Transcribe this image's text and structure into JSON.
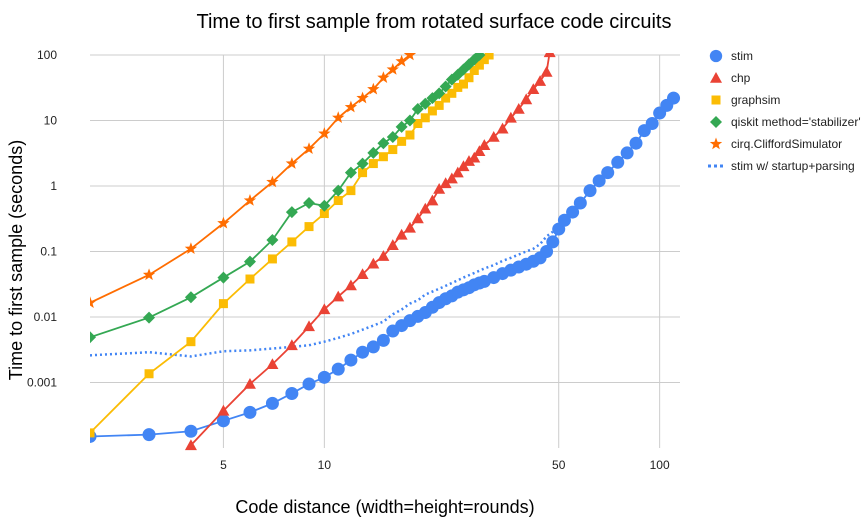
{
  "chart_data": {
    "type": "line",
    "title": "Time to first sample from rotated surface code circuits",
    "xlabel": "Code distance (width=height=rounds)",
    "ylabel": "Time to first sample (seconds)",
    "x_scale": "log",
    "y_scale": "log",
    "xlim": [
      2,
      115
    ],
    "ylim": [
      0.0001,
      100
    ],
    "x_ticks": [
      {
        "value": 5,
        "label": "5"
      },
      {
        "value": 10,
        "label": "10"
      },
      {
        "value": 50,
        "label": "50"
      },
      {
        "value": 100,
        "label": "100"
      }
    ],
    "y_ticks": [
      {
        "value": 0.001,
        "label": "0.001"
      },
      {
        "value": 0.01,
        "label": "0.01"
      },
      {
        "value": 0.1,
        "label": "0.1"
      },
      {
        "value": 1,
        "label": "1"
      },
      {
        "value": 10,
        "label": "10"
      },
      {
        "value": 100,
        "label": "100"
      }
    ],
    "grid": true,
    "legend_position": "right",
    "series": [
      {
        "name": "stim",
        "color": "#4285f4",
        "marker": "circle",
        "line": "solid",
        "points": [
          [
            2,
            0.00015
          ],
          [
            3,
            0.00016
          ],
          [
            4,
            0.00018
          ],
          [
            5,
            0.00026
          ],
          [
            6,
            0.00035
          ],
          [
            7,
            0.00048
          ],
          [
            8,
            0.00068
          ],
          [
            9,
            0.00095
          ],
          [
            10,
            0.0012
          ],
          [
            11,
            0.0016
          ],
          [
            12,
            0.0022
          ],
          [
            13,
            0.0029
          ],
          [
            14,
            0.0035
          ],
          [
            15,
            0.0044
          ],
          [
            16,
            0.0061
          ],
          [
            17,
            0.0074
          ],
          [
            18,
            0.0088
          ],
          [
            19,
            0.0102
          ],
          [
            20,
            0.0117
          ],
          [
            21,
            0.0141
          ],
          [
            22,
            0.0166
          ],
          [
            23,
            0.019
          ],
          [
            24,
            0.021
          ],
          [
            25,
            0.024
          ],
          [
            26,
            0.026
          ],
          [
            27,
            0.028
          ],
          [
            28,
            0.031
          ],
          [
            29,
            0.033
          ],
          [
            30,
            0.035
          ],
          [
            32,
            0.04
          ],
          [
            34,
            0.046
          ],
          [
            36,
            0.052
          ],
          [
            38,
            0.058
          ],
          [
            40,
            0.064
          ],
          [
            42,
            0.071
          ],
          [
            44,
            0.08
          ],
          [
            46,
            0.1
          ],
          [
            48,
            0.14
          ],
          [
            50,
            0.22
          ],
          [
            52,
            0.3
          ],
          [
            55,
            0.4
          ],
          [
            58,
            0.55
          ],
          [
            62,
            0.85
          ],
          [
            66,
            1.2
          ],
          [
            70,
            1.6
          ],
          [
            75,
            2.3
          ],
          [
            80,
            3.2
          ],
          [
            85,
            4.5
          ],
          [
            90,
            7
          ],
          [
            95,
            9
          ],
          [
            100,
            13
          ],
          [
            105,
            17
          ],
          [
            110,
            22
          ]
        ]
      },
      {
        "name": "chp",
        "color": "#ea4335",
        "marker": "triangle",
        "line": "solid",
        "points": [
          [
            4,
            0.00011
          ],
          [
            5,
            0.00037
          ],
          [
            6,
            0.00095
          ],
          [
            7,
            0.0019
          ],
          [
            8,
            0.0037
          ],
          [
            9,
            0.0072
          ],
          [
            10,
            0.0131
          ],
          [
            11,
            0.0205
          ],
          [
            12,
            0.0303
          ],
          [
            13,
            0.045
          ],
          [
            14,
            0.065
          ],
          [
            15,
            0.085
          ],
          [
            16,
            0.125
          ],
          [
            17,
            0.18
          ],
          [
            18,
            0.23
          ],
          [
            19,
            0.32
          ],
          [
            20,
            0.45
          ],
          [
            21,
            0.6
          ],
          [
            22,
            0.9
          ],
          [
            23,
            1.1
          ],
          [
            24,
            1.3
          ],
          [
            25,
            1.6
          ],
          [
            26,
            2.0
          ],
          [
            27,
            2.4
          ],
          [
            28,
            2.7
          ],
          [
            29,
            3.4
          ],
          [
            30,
            4.2
          ],
          [
            32,
            5.6
          ],
          [
            34,
            7.5
          ],
          [
            36,
            11
          ],
          [
            38,
            15
          ],
          [
            40,
            21
          ],
          [
            42,
            30
          ],
          [
            44,
            40
          ],
          [
            46,
            55
          ],
          [
            47,
            110
          ]
        ]
      },
      {
        "name": "graphsim",
        "color": "#fbbc04",
        "marker": "square",
        "line": "solid",
        "points": [
          [
            2,
            0.00017
          ],
          [
            3,
            0.00136
          ],
          [
            4,
            0.0042
          ],
          [
            5,
            0.016
          ],
          [
            6,
            0.038
          ],
          [
            7,
            0.077
          ],
          [
            8,
            0.14
          ],
          [
            9,
            0.24
          ],
          [
            10,
            0.38
          ],
          [
            11,
            0.6
          ],
          [
            12,
            0.85
          ],
          [
            13,
            1.6
          ],
          [
            14,
            2.2
          ],
          [
            15,
            2.8
          ],
          [
            16,
            3.6
          ],
          [
            17,
            4.8
          ],
          [
            18,
            6
          ],
          [
            19,
            9
          ],
          [
            20,
            11
          ],
          [
            21,
            14
          ],
          [
            22,
            17
          ],
          [
            23,
            22
          ],
          [
            24,
            26
          ],
          [
            25,
            32
          ],
          [
            26,
            36
          ],
          [
            27,
            45
          ],
          [
            28,
            58
          ],
          [
            29,
            70
          ],
          [
            30,
            85
          ],
          [
            31,
            100
          ]
        ]
      },
      {
        "name": "qiskit method='stabilizer'",
        "color": "#34a853",
        "marker": "diamond",
        "line": "solid",
        "points": [
          [
            2,
            0.0049
          ],
          [
            3,
            0.0098
          ],
          [
            4,
            0.02
          ],
          [
            5,
            0.04
          ],
          [
            6,
            0.07
          ],
          [
            7,
            0.15
          ],
          [
            8,
            0.4
          ],
          [
            9,
            0.55
          ],
          [
            10,
            0.5
          ],
          [
            11,
            0.85
          ],
          [
            12,
            1.6
          ],
          [
            13,
            2.2
          ],
          [
            14,
            3.2
          ],
          [
            15,
            4.5
          ],
          [
            16,
            5.6
          ],
          [
            17,
            8
          ],
          [
            18,
            10
          ],
          [
            19,
            15
          ],
          [
            20,
            18
          ],
          [
            21,
            22
          ],
          [
            22,
            26
          ],
          [
            23,
            33
          ],
          [
            24,
            42
          ],
          [
            25,
            50
          ],
          [
            26,
            60
          ],
          [
            27,
            72
          ],
          [
            28,
            85
          ],
          [
            29,
            100
          ]
        ]
      },
      {
        "name": "cirq.CliffordSimulator",
        "color": "#ff6d01",
        "marker": "star",
        "line": "solid",
        "points": [
          [
            2,
            0.0165
          ],
          [
            3,
            0.044
          ],
          [
            4,
            0.11
          ],
          [
            5,
            0.27
          ],
          [
            6,
            0.6
          ],
          [
            7,
            1.15
          ],
          [
            8,
            2.2
          ],
          [
            9,
            3.7
          ],
          [
            10,
            6.3
          ],
          [
            11,
            11
          ],
          [
            12,
            16
          ],
          [
            13,
            22
          ],
          [
            14,
            30
          ],
          [
            15,
            45
          ],
          [
            16,
            60
          ],
          [
            17,
            80
          ],
          [
            18,
            100
          ]
        ]
      },
      {
        "name": "stim w/ startup+parsing",
        "color": "#4285f4",
        "marker": "none",
        "line": "dotted",
        "points": [
          [
            2,
            0.0026
          ],
          [
            3,
            0.0029
          ],
          [
            4,
            0.0025
          ],
          [
            5,
            0.003
          ],
          [
            6,
            0.0031
          ],
          [
            7,
            0.0033
          ],
          [
            8,
            0.0035
          ],
          [
            9,
            0.0037
          ],
          [
            10,
            0.0042
          ],
          [
            11,
            0.0048
          ],
          [
            12,
            0.0055
          ],
          [
            13,
            0.0064
          ],
          [
            14,
            0.0074
          ],
          [
            15,
            0.0085
          ],
          [
            16,
            0.011
          ],
          [
            17,
            0.013
          ],
          [
            18,
            0.016
          ],
          [
            19,
            0.018
          ],
          [
            20,
            0.022
          ],
          [
            22,
            0.027
          ],
          [
            24,
            0.033
          ],
          [
            26,
            0.04
          ],
          [
            28,
            0.047
          ],
          [
            30,
            0.055
          ],
          [
            32,
            0.062
          ],
          [
            34,
            0.072
          ],
          [
            36,
            0.08
          ],
          [
            38,
            0.09
          ],
          [
            40,
            0.1
          ],
          [
            42,
            0.11
          ],
          [
            44,
            0.13
          ],
          [
            46,
            0.17
          ],
          [
            48,
            0.2
          ]
        ]
      }
    ]
  }
}
